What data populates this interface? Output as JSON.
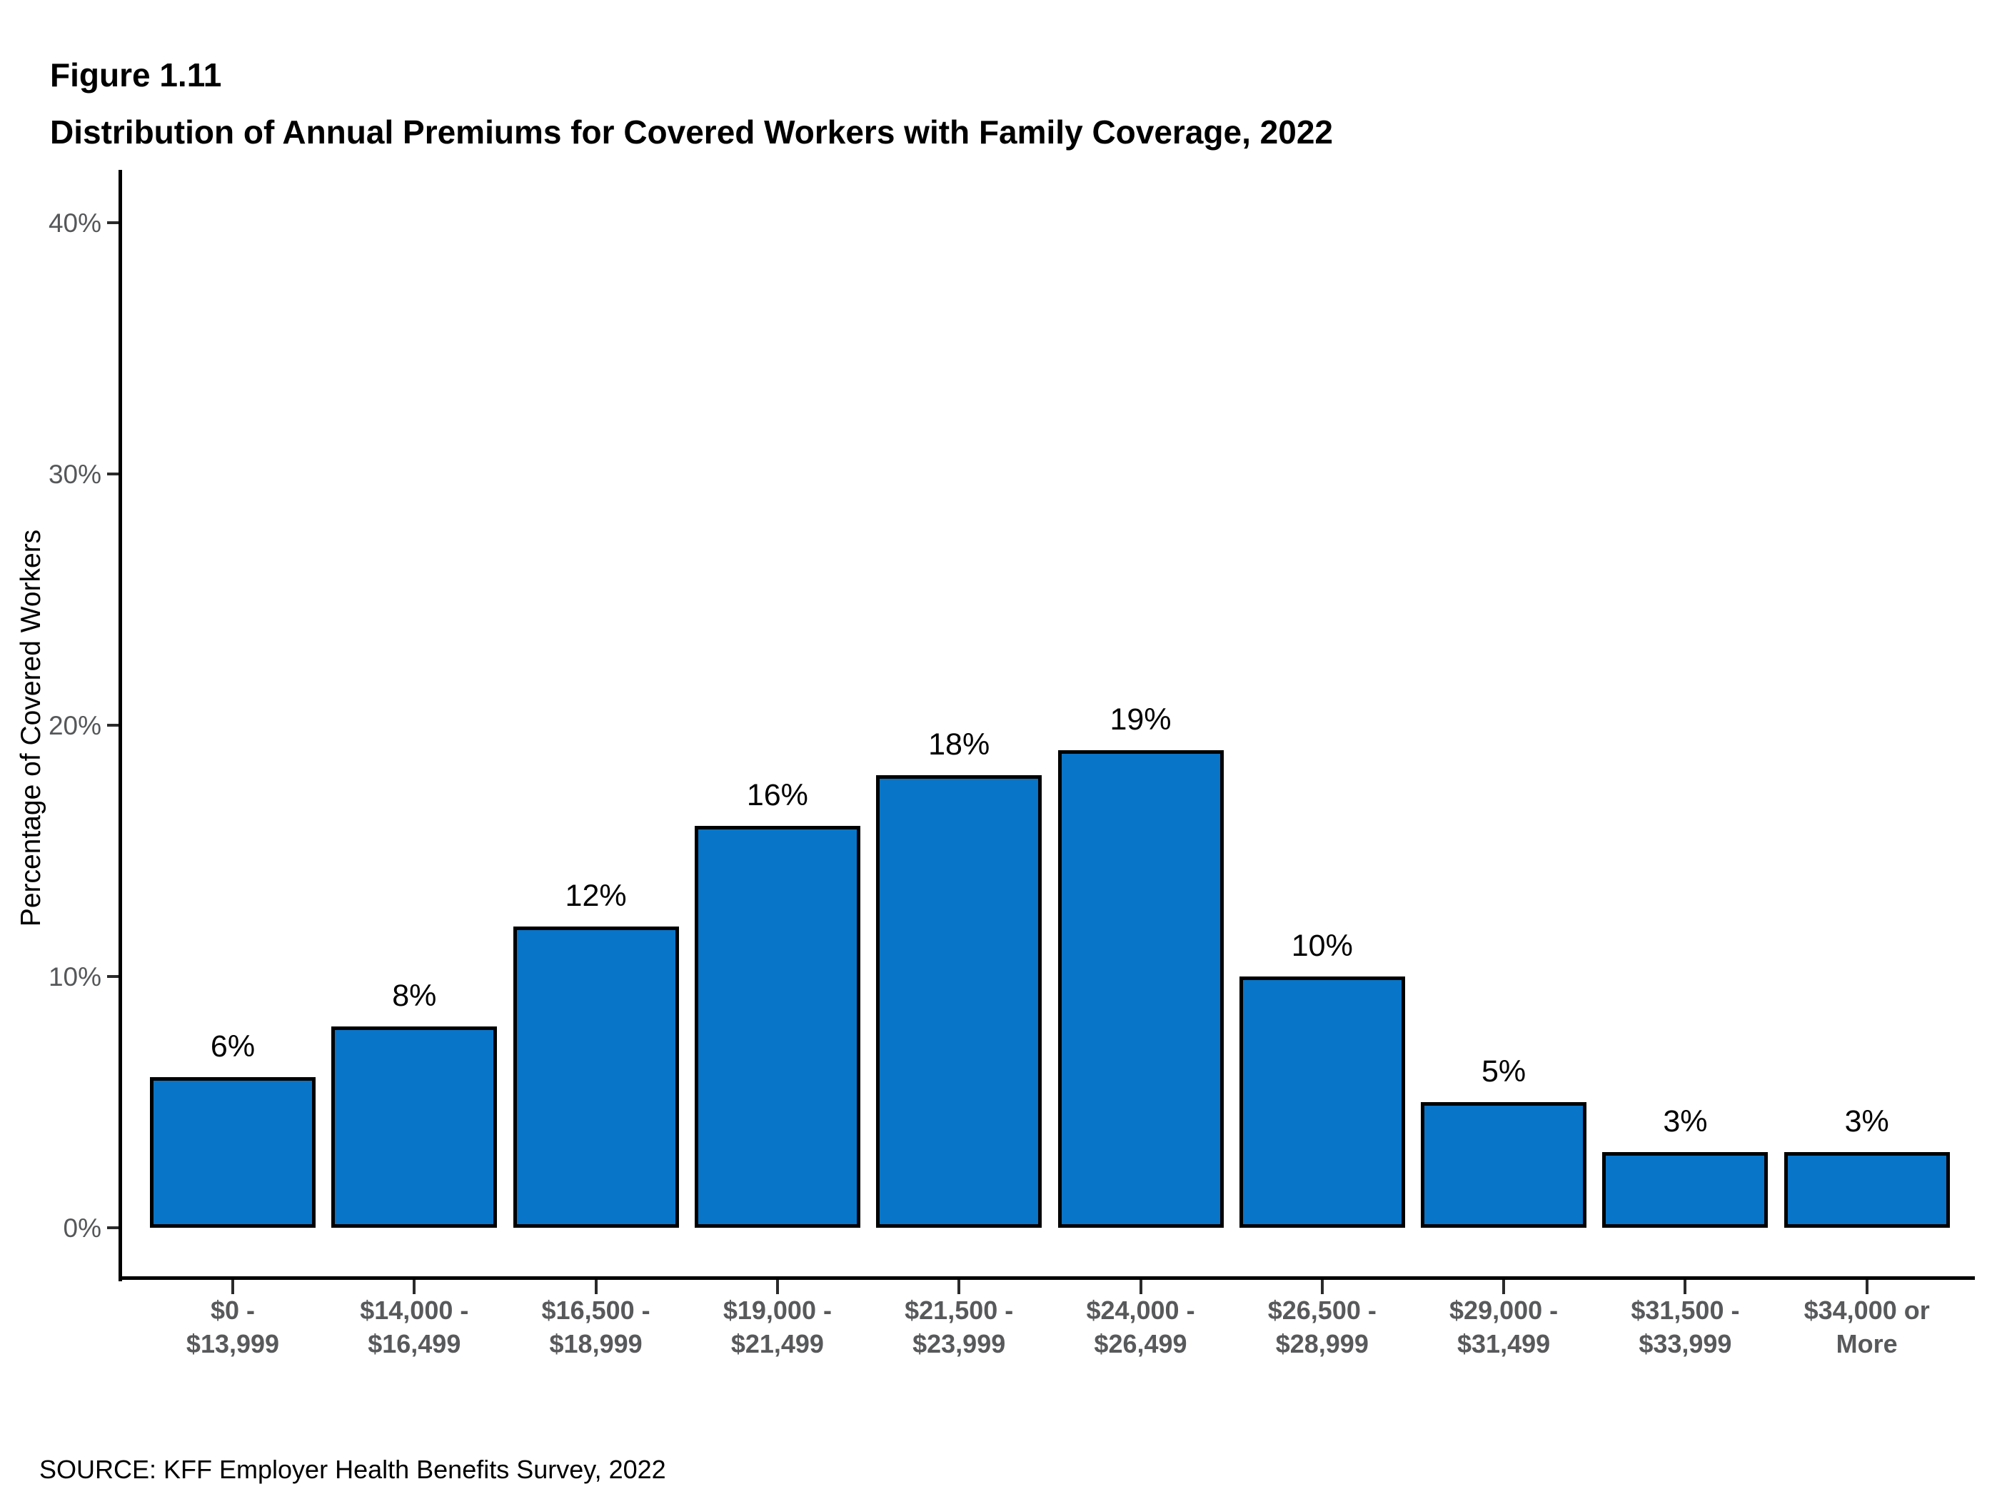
{
  "figure_label": "Figure 1.11",
  "title": "Distribution of Annual Premiums for Covered Workers with Family Coverage, 2022",
  "source": "SOURCE: KFF Employer Health Benefits Survey, 2022",
  "chart_data": {
    "type": "bar",
    "title": "Distribution of Annual Premiums for Covered Workers with Family Coverage, 2022",
    "categories": [
      "$0 -\n$13,999",
      "$14,000 -\n$16,499",
      "$16,500 -\n$18,999",
      "$19,000 -\n$21,499",
      "$21,500 -\n$23,999",
      "$24,000 -\n$26,499",
      "$26,500 -\n$28,999",
      "$29,000 -\n$31,499",
      "$31,500 -\n$33,999",
      "$34,000 or\nMore"
    ],
    "values": [
      6,
      8,
      12,
      16,
      18,
      19,
      10,
      5,
      3,
      3
    ],
    "data_labels": [
      "6%",
      "8%",
      "12%",
      "16%",
      "18%",
      "19%",
      "10%",
      "5%",
      "3%",
      "3%"
    ],
    "xlabel": "",
    "ylabel": "Percentage of Covered Workers",
    "ylim": [
      0,
      40
    ],
    "ytick_values": [
      0,
      10,
      20,
      30,
      40
    ],
    "ytick_labels": [
      "0%",
      "10%",
      "20%",
      "30%",
      "40%"
    ],
    "grid": false,
    "legend": null,
    "colors": {
      "bar_fill": "#0875C8",
      "bar_border": "#000000",
      "axis_line": "#000000",
      "tick_label_gray": "#555759",
      "category_label_gray": "#58595B",
      "label_black": "#000000"
    }
  }
}
